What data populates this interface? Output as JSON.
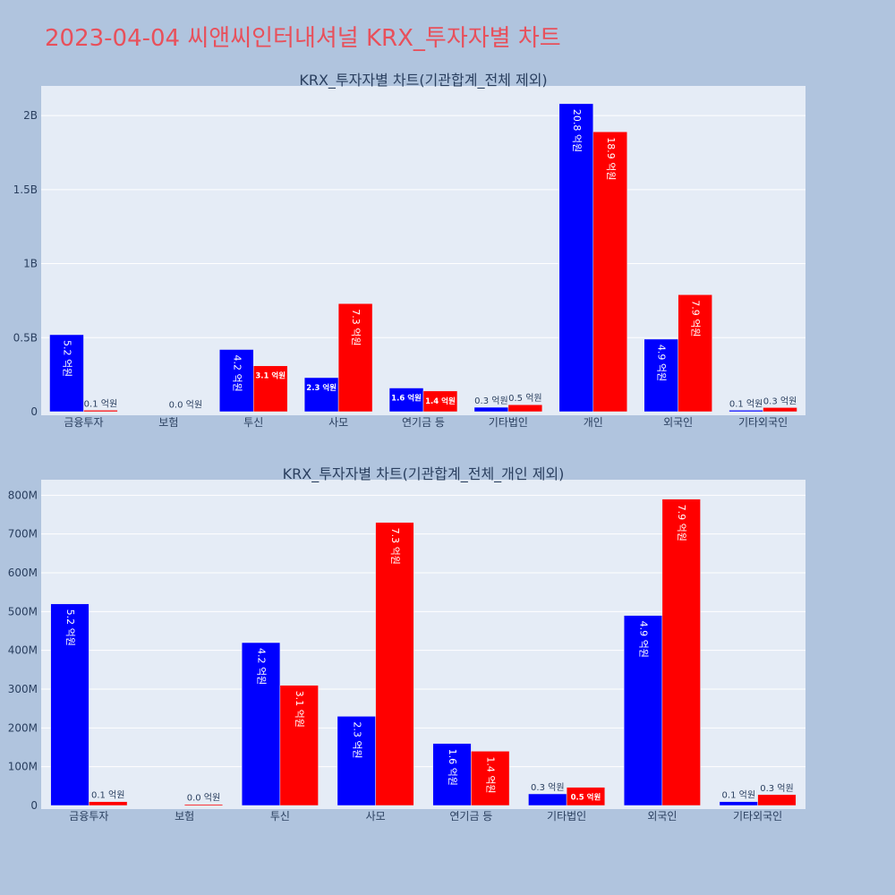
{
  "page_title": "2023-04-04 씨앤씨인터내셔널 KRX_투자자별 차트",
  "chart_data": [
    {
      "type": "bar",
      "title": "KRX_투자자별 차트(기관합계_전체 제외)",
      "categories": [
        "금융투자",
        "보험",
        "투신",
        "사모",
        "연기금 등",
        "기타법인",
        "개인",
        "외국인",
        "기타외국인"
      ],
      "yticks": [
        0,
        500000000,
        1000000000,
        1500000000,
        2000000000
      ],
      "ytick_labels": [
        "0",
        "0.5B",
        "1B",
        "1.5B",
        "2B"
      ],
      "ylim": [
        0,
        2200000000
      ],
      "grid": true,
      "series": [
        {
          "color": "#0000ff",
          "values": [
            520000000,
            0,
            420000000,
            230000000,
            160000000,
            30000000,
            2080000000,
            490000000,
            10000000
          ],
          "labels": [
            "5.2 억원",
            "",
            "4.2 억원",
            "2.3 억원",
            "1.6 억원",
            "0.3 억원",
            "20.8 억원",
            "4.9 억원",
            "0.1 억원"
          ]
        },
        {
          "color": "#ff0000",
          "values": [
            10000000,
            3000000,
            310000000,
            730000000,
            140000000,
            47000000,
            1890000000,
            790000000,
            28000000
          ],
          "labels": [
            "0.1 억원",
            "0.0 억원",
            "3.1 억원",
            "7.3 억원",
            "1.4 억원",
            "0.5 억원",
            "18.9 억원",
            "7.9 억원",
            "0.3 억원"
          ]
        }
      ]
    },
    {
      "type": "bar",
      "title": "KRX_투자자별 차트(기관합계_전체_개인 제외)",
      "categories": [
        "금융투자",
        "보험",
        "투신",
        "사모",
        "연기금 등",
        "기타법인",
        "외국인",
        "기타외국인"
      ],
      "yticks": [
        0,
        100000000,
        200000000,
        300000000,
        400000000,
        500000000,
        600000000,
        700000000,
        800000000
      ],
      "ytick_labels": [
        "0",
        "100M",
        "200M",
        "300M",
        "400M",
        "500M",
        "600M",
        "700M",
        "800M"
      ],
      "ylim": [
        0,
        840000000
      ],
      "grid": true,
      "series": [
        {
          "color": "#0000ff",
          "values": [
            520000000,
            0,
            420000000,
            230000000,
            160000000,
            30000000,
            490000000,
            10000000
          ],
          "labels": [
            "5.2 억원",
            "",
            "4.2 억원",
            "2.3 억원",
            "1.6 억원",
            "0.3 억원",
            "4.9 억원",
            "0.1 억원"
          ]
        },
        {
          "color": "#ff0000",
          "values": [
            10000000,
            3000000,
            310000000,
            730000000,
            140000000,
            47000000,
            790000000,
            28000000
          ],
          "labels": [
            "0.1 억원",
            "0.0 억원",
            "3.1 억원",
            "7.3 억원",
            "1.4 억원",
            "0.5 억원",
            "7.9 억원",
            "0.3 억원"
          ]
        }
      ]
    }
  ]
}
